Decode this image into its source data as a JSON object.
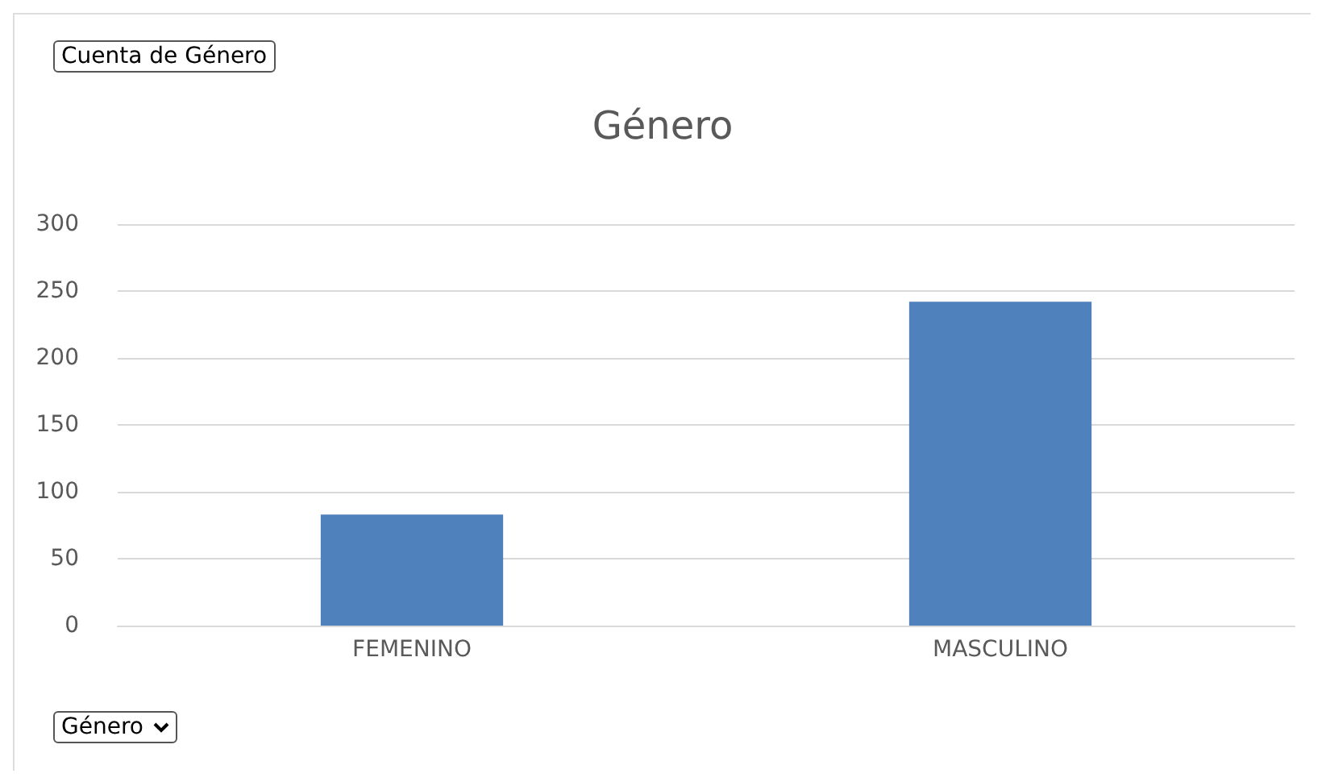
{
  "chart_data": {
    "type": "bar",
    "title": "Género",
    "categories": [
      "FEMENINO",
      "MASCULINO"
    ],
    "values": [
      83,
      242
    ],
    "color": "#4f81bd",
    "ylim": [
      0,
      300
    ],
    "yticks": [
      0,
      50,
      100,
      150,
      200,
      250,
      300
    ],
    "grid": "y",
    "annotations": [
      "Cuenta de Género",
      "Género"
    ]
  }
}
